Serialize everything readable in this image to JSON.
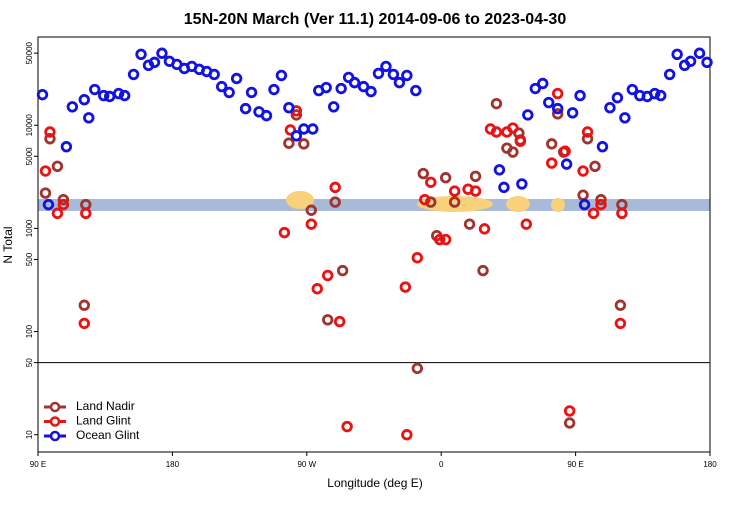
{
  "chart_data": {
    "type": "scatter",
    "title": "15N-20N March (Ver 11.1)   2014-09-06 to 2023-04-30",
    "x_label": "Longitude (deg E)",
    "y_label": "N Total",
    "xlim": [
      90,
      540
    ],
    "ylim": [
      6.8,
      71700
    ],
    "log_y": true,
    "divider": 50,
    "legend": "lower left",
    "xticks": [
      {
        "value": 90,
        "label": "90 E"
      },
      180,
      {
        "value": 270,
        "label": "90 W"
      },
      {
        "value": 360,
        "label": "0"
      },
      {
        "value": 450,
        "label": "90 E"
      },
      {
        "value": 540,
        "label": "180"
      }
    ],
    "yticks": [
      10,
      50,
      100,
      500,
      1000,
      5000,
      10000,
      50000
    ],
    "series": [
      {
        "name": "Land Nadir",
        "color": "#a0342e",
        "x": [
          95,
          98,
          103,
          107,
          121,
          122,
          258,
          263,
          268,
          273,
          284,
          289,
          294,
          344,
          348,
          353,
          357,
          363,
          369,
          379,
          383,
          388,
          397,
          404,
          408,
          412,
          413,
          434,
          438,
          442,
          446,
          455,
          458,
          463,
          467,
          480,
          481
        ],
        "values": [
          2200,
          7400,
          4000,
          1900,
          180,
          1700,
          6700,
          12600,
          6600,
          1500,
          130,
          1800,
          390,
          44,
          3400,
          1800,
          850,
          3100,
          1800,
          1100,
          3200,
          390,
          16200,
          6000,
          5500,
          8400,
          7200,
          6600,
          12900,
          5500,
          13,
          2100,
          7400,
          4000,
          1900,
          180,
          1700
        ]
      },
      {
        "name": "Land Glint",
        "color": "#ee1111",
        "x": [
          95,
          98,
          103,
          107,
          121,
          122,
          255,
          259,
          263,
          273,
          277,
          284,
          289,
          292,
          297,
          336,
          337,
          344,
          349,
          353,
          359,
          363,
          369,
          378,
          383,
          389,
          393,
          397,
          404,
          408,
          413,
          417,
          434,
          438,
          443,
          446,
          455,
          458,
          462,
          467,
          480,
          481
        ],
        "values": [
          3600,
          8600,
          1400,
          1700,
          120,
          1400,
          910,
          9000,
          13800,
          1100,
          260,
          350,
          2500,
          125,
          12,
          270,
          10,
          520,
          1900,
          2800,
          780,
          780,
          2300,
          2400,
          2300,
          990,
          9200,
          8600,
          8600,
          9400,
          7000,
          1100,
          4300,
          20300,
          5600,
          17,
          3600,
          8600,
          1400,
          1700,
          120,
          1400
        ]
      },
      {
        "name": "Ocean Glint",
        "color": "#1212e6",
        "x": [
          93,
          97,
          109,
          113,
          121,
          124,
          128,
          134,
          138,
          144,
          148,
          154,
          159,
          164,
          168,
          173,
          178,
          183,
          188,
          193,
          198,
          203,
          208,
          213,
          218,
          223,
          229,
          233,
          238,
          243,
          248,
          253,
          258,
          263,
          268,
          274,
          278,
          283,
          288,
          293,
          298,
          302,
          308,
          313,
          318,
          323,
          328,
          332,
          337,
          343,
          399,
          402,
          414,
          418,
          423,
          428,
          432,
          438,
          444,
          448,
          453,
          456,
          468,
          473,
          478,
          483,
          488,
          493,
          498,
          503,
          507,
          513,
          518,
          523,
          527,
          533,
          538
        ],
        "values": [
          19800,
          1700,
          6200,
          15100,
          17700,
          11800,
          22200,
          19400,
          19000,
          20300,
          19400,
          31100,
          48700,
          38100,
          40700,
          49900,
          41700,
          38900,
          35500,
          37200,
          34800,
          33200,
          31100,
          23700,
          20800,
          28400,
          14500,
          20800,
          13500,
          12400,
          22200,
          30400,
          14800,
          7900,
          9200,
          9200,
          21700,
          23200,
          15100,
          22700,
          29100,
          25900,
          23700,
          21200,
          31800,
          37200,
          31100,
          25900,
          30400,
          21700,
          3700,
          2500,
          2700,
          12600,
          22700,
          25400,
          16600,
          14500,
          4200,
          13200,
          19400,
          1700,
          6200,
          14800,
          18500,
          11800,
          22200,
          19400,
          19000,
          20300,
          19400,
          31100,
          48700,
          38100,
          41700,
          49900,
          40700
        ]
      }
    ]
  }
}
